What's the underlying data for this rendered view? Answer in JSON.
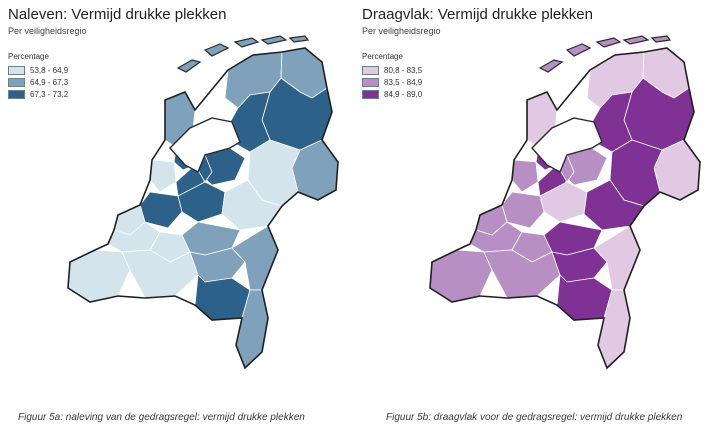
{
  "left": {
    "title": "Naleven: Vermijd drukke plekken",
    "subtitle": "Per veiligheidsregio",
    "legend_title": "Percentage",
    "legend": [
      {
        "label": "53,8 - 64,9",
        "color": "#d4e4ec"
      },
      {
        "label": "64,9 - 67,3",
        "color": "#7fa1bb"
      },
      {
        "label": "67,3 - 73,2",
        "color": "#2e6189"
      }
    ],
    "caption": "Figuur 5a: naleving van de gedragsregel: vermijd drukke plekken"
  },
  "right": {
    "title": "Draagvlak: Vermijd drukke plekken",
    "subtitle": "Per veiligheidsregio",
    "legend_title": "Percentage",
    "legend": [
      {
        "label": "80,8 - 83,5",
        "color": "#e1c8e3"
      },
      {
        "label": "83,5 - 84,9",
        "color": "#b88fc4"
      },
      {
        "label": "84,9 - 89,0",
        "color": "#7f3194"
      }
    ],
    "caption": "Figuur 5b: draagvlak voor de gedragsregel: vermijd drukke plekken"
  },
  "regions": [
    {
      "id": "groningen",
      "left_class": 1,
      "right_class": 0
    },
    {
      "id": "friesland",
      "left_class": 1,
      "right_class": 0
    },
    {
      "id": "drenthe",
      "left_class": 2,
      "right_class": 2
    },
    {
      "id": "ijsselland",
      "left_class": 2,
      "right_class": 2
    },
    {
      "id": "twente",
      "left_class": 1,
      "right_class": 0
    },
    {
      "id": "flevoland",
      "left_class": 2,
      "right_class": 1
    },
    {
      "id": "noord-holland-noord",
      "left_class": 1,
      "right_class": 0
    },
    {
      "id": "zaanstreek",
      "left_class": 2,
      "right_class": 2
    },
    {
      "id": "kennemerland",
      "left_class": 0,
      "right_class": 1
    },
    {
      "id": "amsterdam",
      "left_class": 2,
      "right_class": 2
    },
    {
      "id": "gooi",
      "left_class": 2,
      "right_class": 1
    },
    {
      "id": "utrecht",
      "left_class": 2,
      "right_class": 0
    },
    {
      "id": "gelderland-noord-oost",
      "left_class": 0,
      "right_class": 2
    },
    {
      "id": "gelderland-midden",
      "left_class": 0,
      "right_class": 2
    },
    {
      "id": "hollands-midden",
      "left_class": 2,
      "right_class": 1
    },
    {
      "id": "haaglanden",
      "left_class": 0,
      "right_class": 1
    },
    {
      "id": "rotterdam",
      "left_class": 0,
      "right_class": 1
    },
    {
      "id": "zuid-holland-zuid",
      "left_class": 0,
      "right_class": 1
    },
    {
      "id": "gelderland-zuid",
      "left_class": 1,
      "right_class": 2
    },
    {
      "id": "zeeland",
      "left_class": 0,
      "right_class": 1
    },
    {
      "id": "midden-west-brabant",
      "left_class": 0,
      "right_class": 1
    },
    {
      "id": "brabant-noord",
      "left_class": 1,
      "right_class": 2
    },
    {
      "id": "brabant-zuidoost",
      "left_class": 2,
      "right_class": 2
    },
    {
      "id": "limburg-noord",
      "left_class": 1,
      "right_class": 0
    },
    {
      "id": "limburg-zuid",
      "left_class": 1,
      "right_class": 0
    }
  ]
}
